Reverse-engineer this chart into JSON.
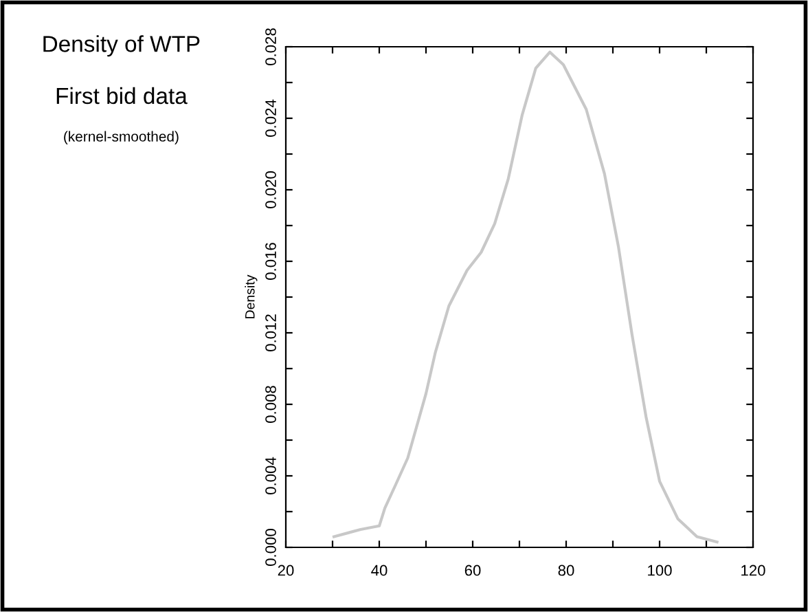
{
  "chart_data": {
    "type": "line",
    "title": "Density of WTP",
    "subtitle": "First bid data",
    "annotations": [
      "(kernel-smoothed)"
    ],
    "ylabel": "Density",
    "series": [
      {
        "color": "#c8c8c8",
        "x": [
          30.3,
          36,
          40,
          41.2,
          43.5,
          46.1,
          50,
          52,
          54.9,
          58.8,
          61.8,
          64.7,
          67.6,
          70.6,
          73.5,
          76.5,
          79.4,
          84.3,
          88.2,
          91.2,
          94.1,
          97.1,
          100,
          103.9,
          108,
          112.3
        ],
        "values": [
          0.0006,
          0.001,
          0.0012,
          0.0022,
          0.0035,
          0.005,
          0.0086,
          0.0109,
          0.0135,
          0.0155,
          0.0165,
          0.0181,
          0.0206,
          0.0242,
          0.0268,
          0.0277,
          0.027,
          0.0245,
          0.0209,
          0.0168,
          0.0119,
          0.0073,
          0.0037,
          0.0016,
          0.0006,
          0.0003
        ]
      }
    ],
    "xlim": [
      20,
      120
    ],
    "ylim": [
      0,
      0.028
    ],
    "xticks": [
      20,
      {
        "value": 30,
        "label": null
      },
      40,
      {
        "value": 50,
        "label": null
      },
      60,
      {
        "value": 70,
        "label": null
      },
      80,
      {
        "value": 90,
        "label": null
      },
      100,
      {
        "value": 110,
        "label": null
      },
      120
    ],
    "yticks": [
      {
        "value": 0,
        "label": "0.000"
      },
      {
        "value": 0.002,
        "label": null
      },
      {
        "value": 0.004,
        "label": "0.004"
      },
      {
        "value": 0.006,
        "label": null
      },
      {
        "value": 0.008,
        "label": "0.008"
      },
      {
        "value": 0.01,
        "label": null
      },
      {
        "value": 0.012,
        "label": "0.012"
      },
      {
        "value": 0.014,
        "label": null
      },
      {
        "value": 0.016,
        "label": "0.016"
      },
      {
        "value": 0.018,
        "label": null
      },
      {
        "value": 0.02,
        "label": "0.020"
      },
      {
        "value": 0.022,
        "label": null
      },
      {
        "value": 0.024,
        "label": "0.024"
      },
      {
        "value": 0.026,
        "label": null
      },
      {
        "value": 0.028,
        "label": "0.028"
      }
    ],
    "grid": false,
    "legend": false,
    "marker": "none",
    "line_style": "solid"
  }
}
